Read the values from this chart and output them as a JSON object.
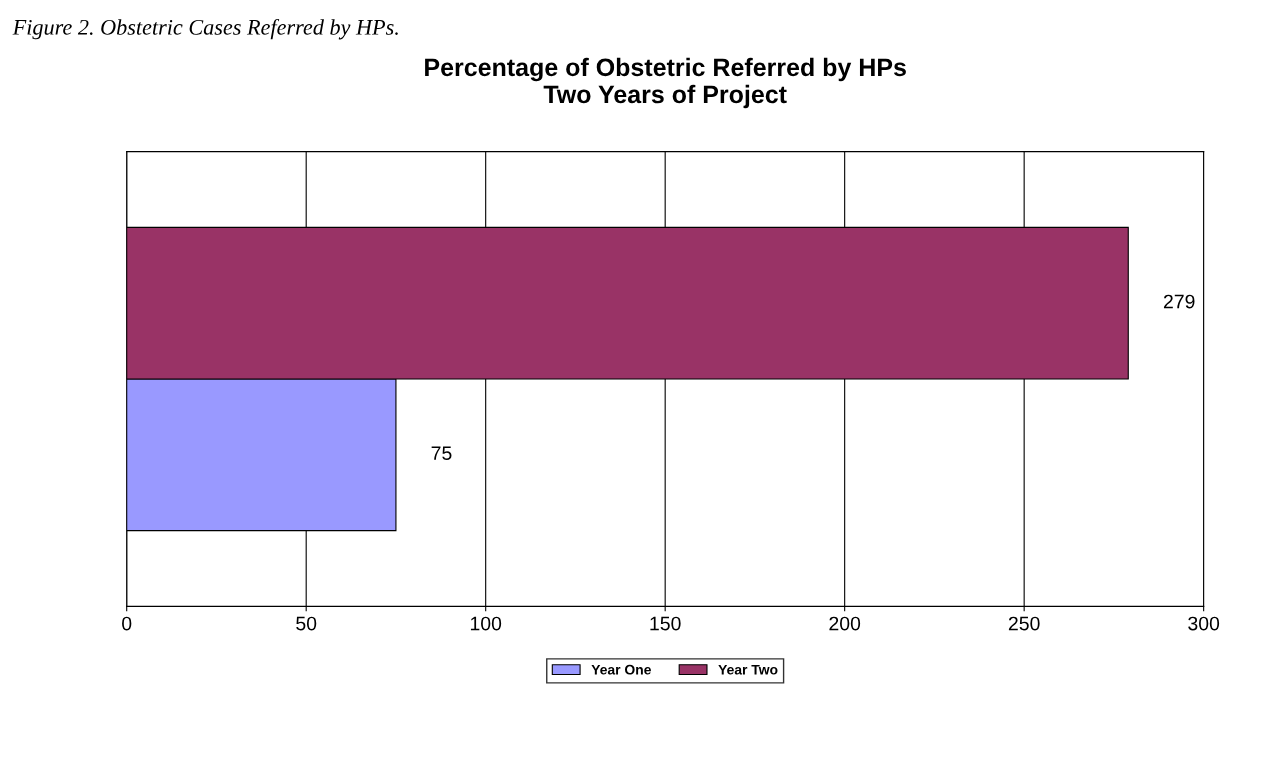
{
  "chart_data": {
    "type": "bar",
    "orientation": "horizontal",
    "title": "Percentage of Obstetric Referred by HPs\nTwo Years of Project",
    "annotations": [
      "Figure 2. Obstetric Cases Referred by HPs."
    ],
    "categories": [
      null
    ],
    "series": [
      {
        "name": "Year One",
        "color": "#9999ff",
        "values": [
          75
        ]
      },
      {
        "name": "Year Two",
        "color": "#993366",
        "values": [
          279
        ]
      }
    ],
    "xlim": [
      0,
      300
    ],
    "xticks": [
      0,
      50,
      100,
      150,
      200,
      250,
      300
    ],
    "grid": "x",
    "legend": "bottom",
    "data_labels": true
  }
}
